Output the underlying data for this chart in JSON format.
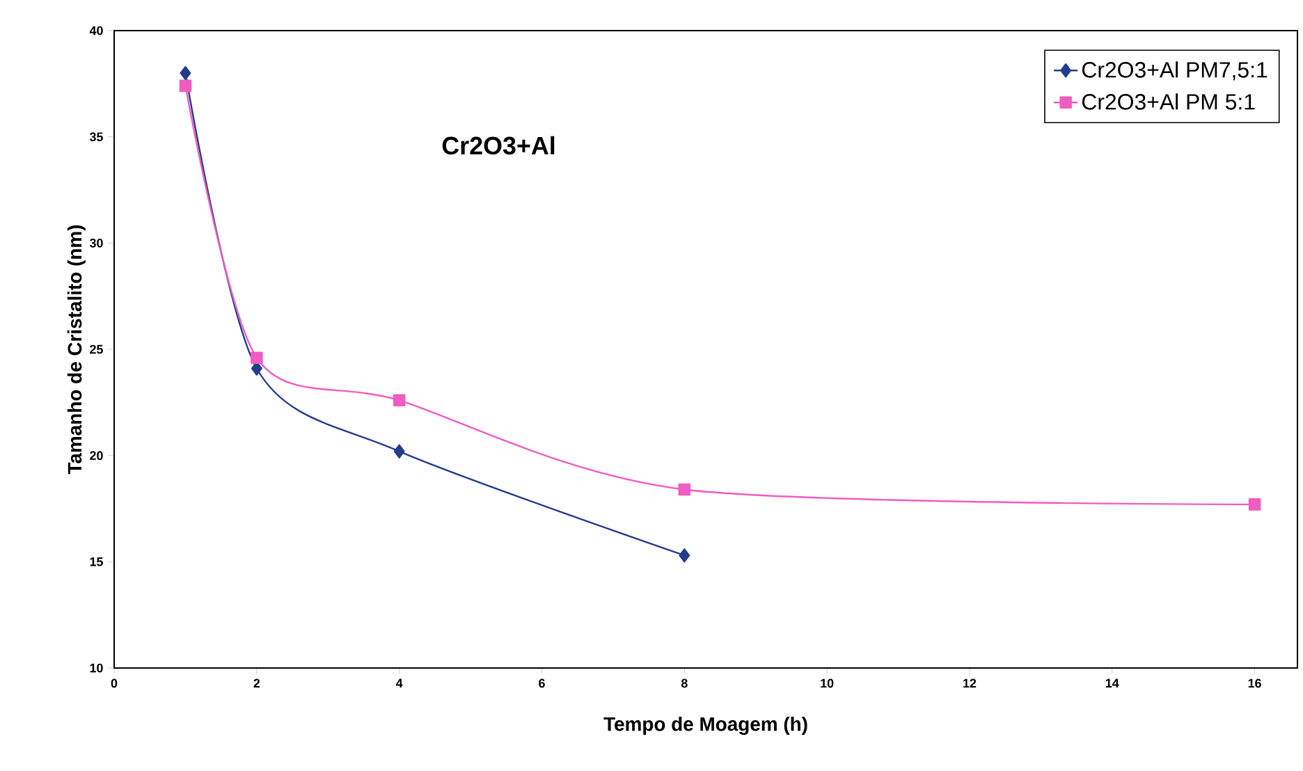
{
  "chart_data": {
    "type": "line",
    "title": "Cr2O3+Al",
    "xlabel": "Tempo de Moagem  (h)",
    "ylabel": "Tamanho de Cristalito (nm)",
    "xlim": [
      0,
      16.6
    ],
    "xticks": [
      0,
      2,
      4,
      6,
      8,
      10,
      12,
      14,
      16
    ],
    "ylim": [
      10,
      40
    ],
    "yticks": [
      10,
      15,
      20,
      25,
      30,
      35,
      40
    ],
    "grid": false,
    "legend": "top right",
    "line_style": "solid",
    "series": [
      {
        "name": "Cr2O3+Al PM7,5:1",
        "color": "#243c8c",
        "marker": "diamond",
        "x": [
          1,
          2,
          4,
          8
        ],
        "values": [
          38.0,
          24.1,
          20.2,
          15.3
        ]
      },
      {
        "name": "Cr2O3+Al PM 5:1",
        "color": "#f05cc0",
        "marker": "square",
        "x": [
          1,
          2,
          4,
          8,
          16
        ],
        "values": [
          37.4,
          24.6,
          22.6,
          18.4,
          17.7
        ]
      }
    ]
  }
}
